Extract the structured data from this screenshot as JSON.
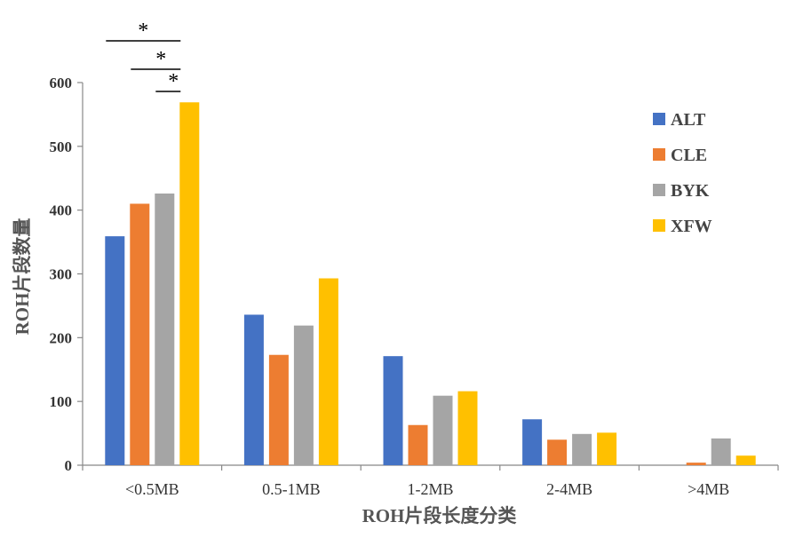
{
  "chart_data": {
    "type": "bar",
    "categories": [
      "<0.5MB",
      "0.5-1MB",
      "1-2MB",
      "2-4MB",
      ">4MB"
    ],
    "series": [
      {
        "name": "ALT",
        "color": "#4472C4",
        "values": [
          359,
          236,
          171,
          72,
          0
        ]
      },
      {
        "name": "CLE",
        "color": "#ED7D31",
        "values": [
          410,
          173,
          63,
          40,
          4
        ]
      },
      {
        "name": "BYK",
        "color": "#A5A5A5",
        "values": [
          426,
          219,
          109,
          49,
          42
        ]
      },
      {
        "name": "XFW",
        "color": "#FFC000",
        "values": [
          569,
          293,
          116,
          51,
          15
        ]
      }
    ],
    "xlabel": "ROH片段长度分类",
    "ylabel": "ROH片段数量",
    "ylim": [
      0,
      600
    ],
    "yticks": [
      0,
      100,
      200,
      300,
      400,
      500,
      600
    ],
    "grid": false,
    "legend_position": "right",
    "significance": [
      {
        "category": "<0.5MB",
        "from": "ALT",
        "to": "XFW",
        "label": "*"
      },
      {
        "category": "<0.5MB",
        "from": "CLE",
        "to": "XFW",
        "label": "*"
      },
      {
        "category": "<0.5MB",
        "from": "BYK",
        "to": "XFW",
        "label": "*"
      }
    ]
  }
}
